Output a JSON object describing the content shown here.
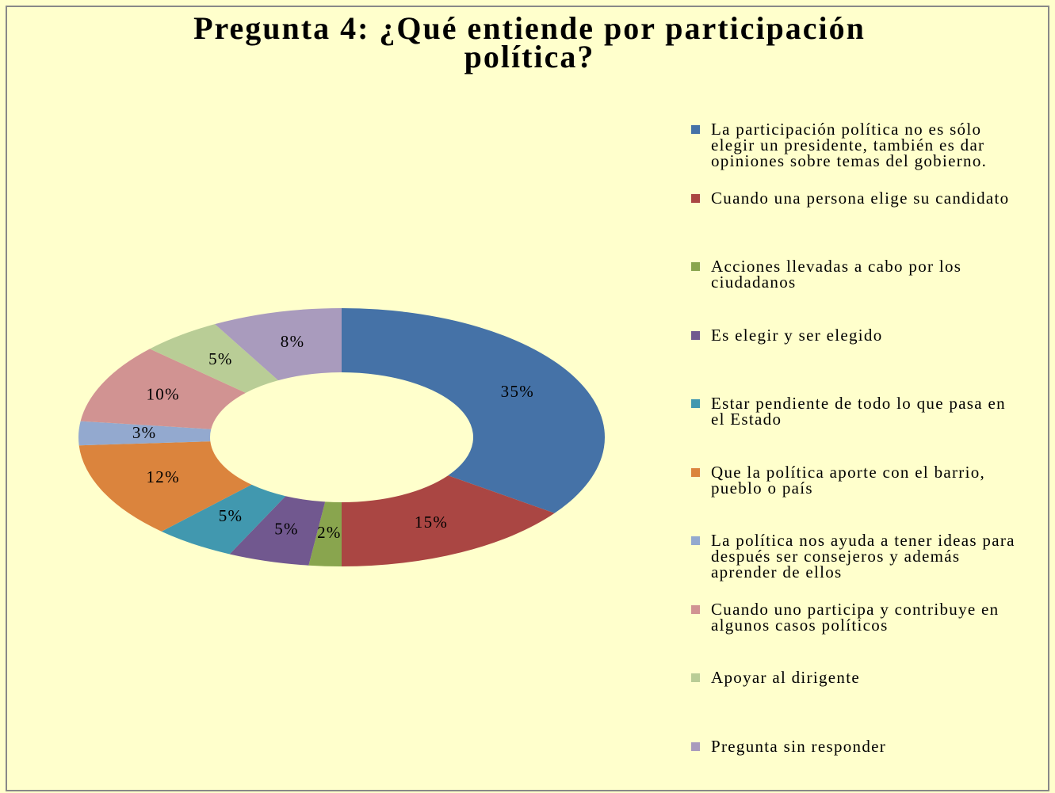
{
  "chart_data": {
    "type": "donut",
    "title": "Pregunta 4: ¿Qué entiende por participación política?",
    "categories": [
      "La participación política no es sólo elegir un presidente, también es dar opiniones sobre temas del gobierno.",
      "Cuando una persona elige su candidato",
      "Acciones llevadas a cabo por los ciudadanos",
      "Es elegir y ser elegido",
      "Estar pendiente de todo lo que pasa en el Estado",
      "Que la política aporte con el barrio, pueblo o país",
      "La política nos ayuda a tener ideas para después ser consejeros y además aprender de ellos",
      "Cuando uno participa y contribuye en algunos casos políticos",
      "Apoyar al dirigente",
      "Pregunta sin responder"
    ],
    "values": [
      35,
      15,
      2,
      5,
      5,
      12,
      3,
      10,
      5,
      8
    ],
    "value_labels": [
      "35%",
      "15%",
      "2%",
      "5%",
      "5%",
      "12%",
      "3%",
      "10%",
      "5%",
      "8%"
    ],
    "colors": [
      "#4572A7",
      "#AA4643",
      "#89A54E",
      "#71588F",
      "#4198AF",
      "#DB843D",
      "#93A9CF",
      "#D19392",
      "#B9CD96",
      "#A99BBD"
    ],
    "legend": "right"
  }
}
